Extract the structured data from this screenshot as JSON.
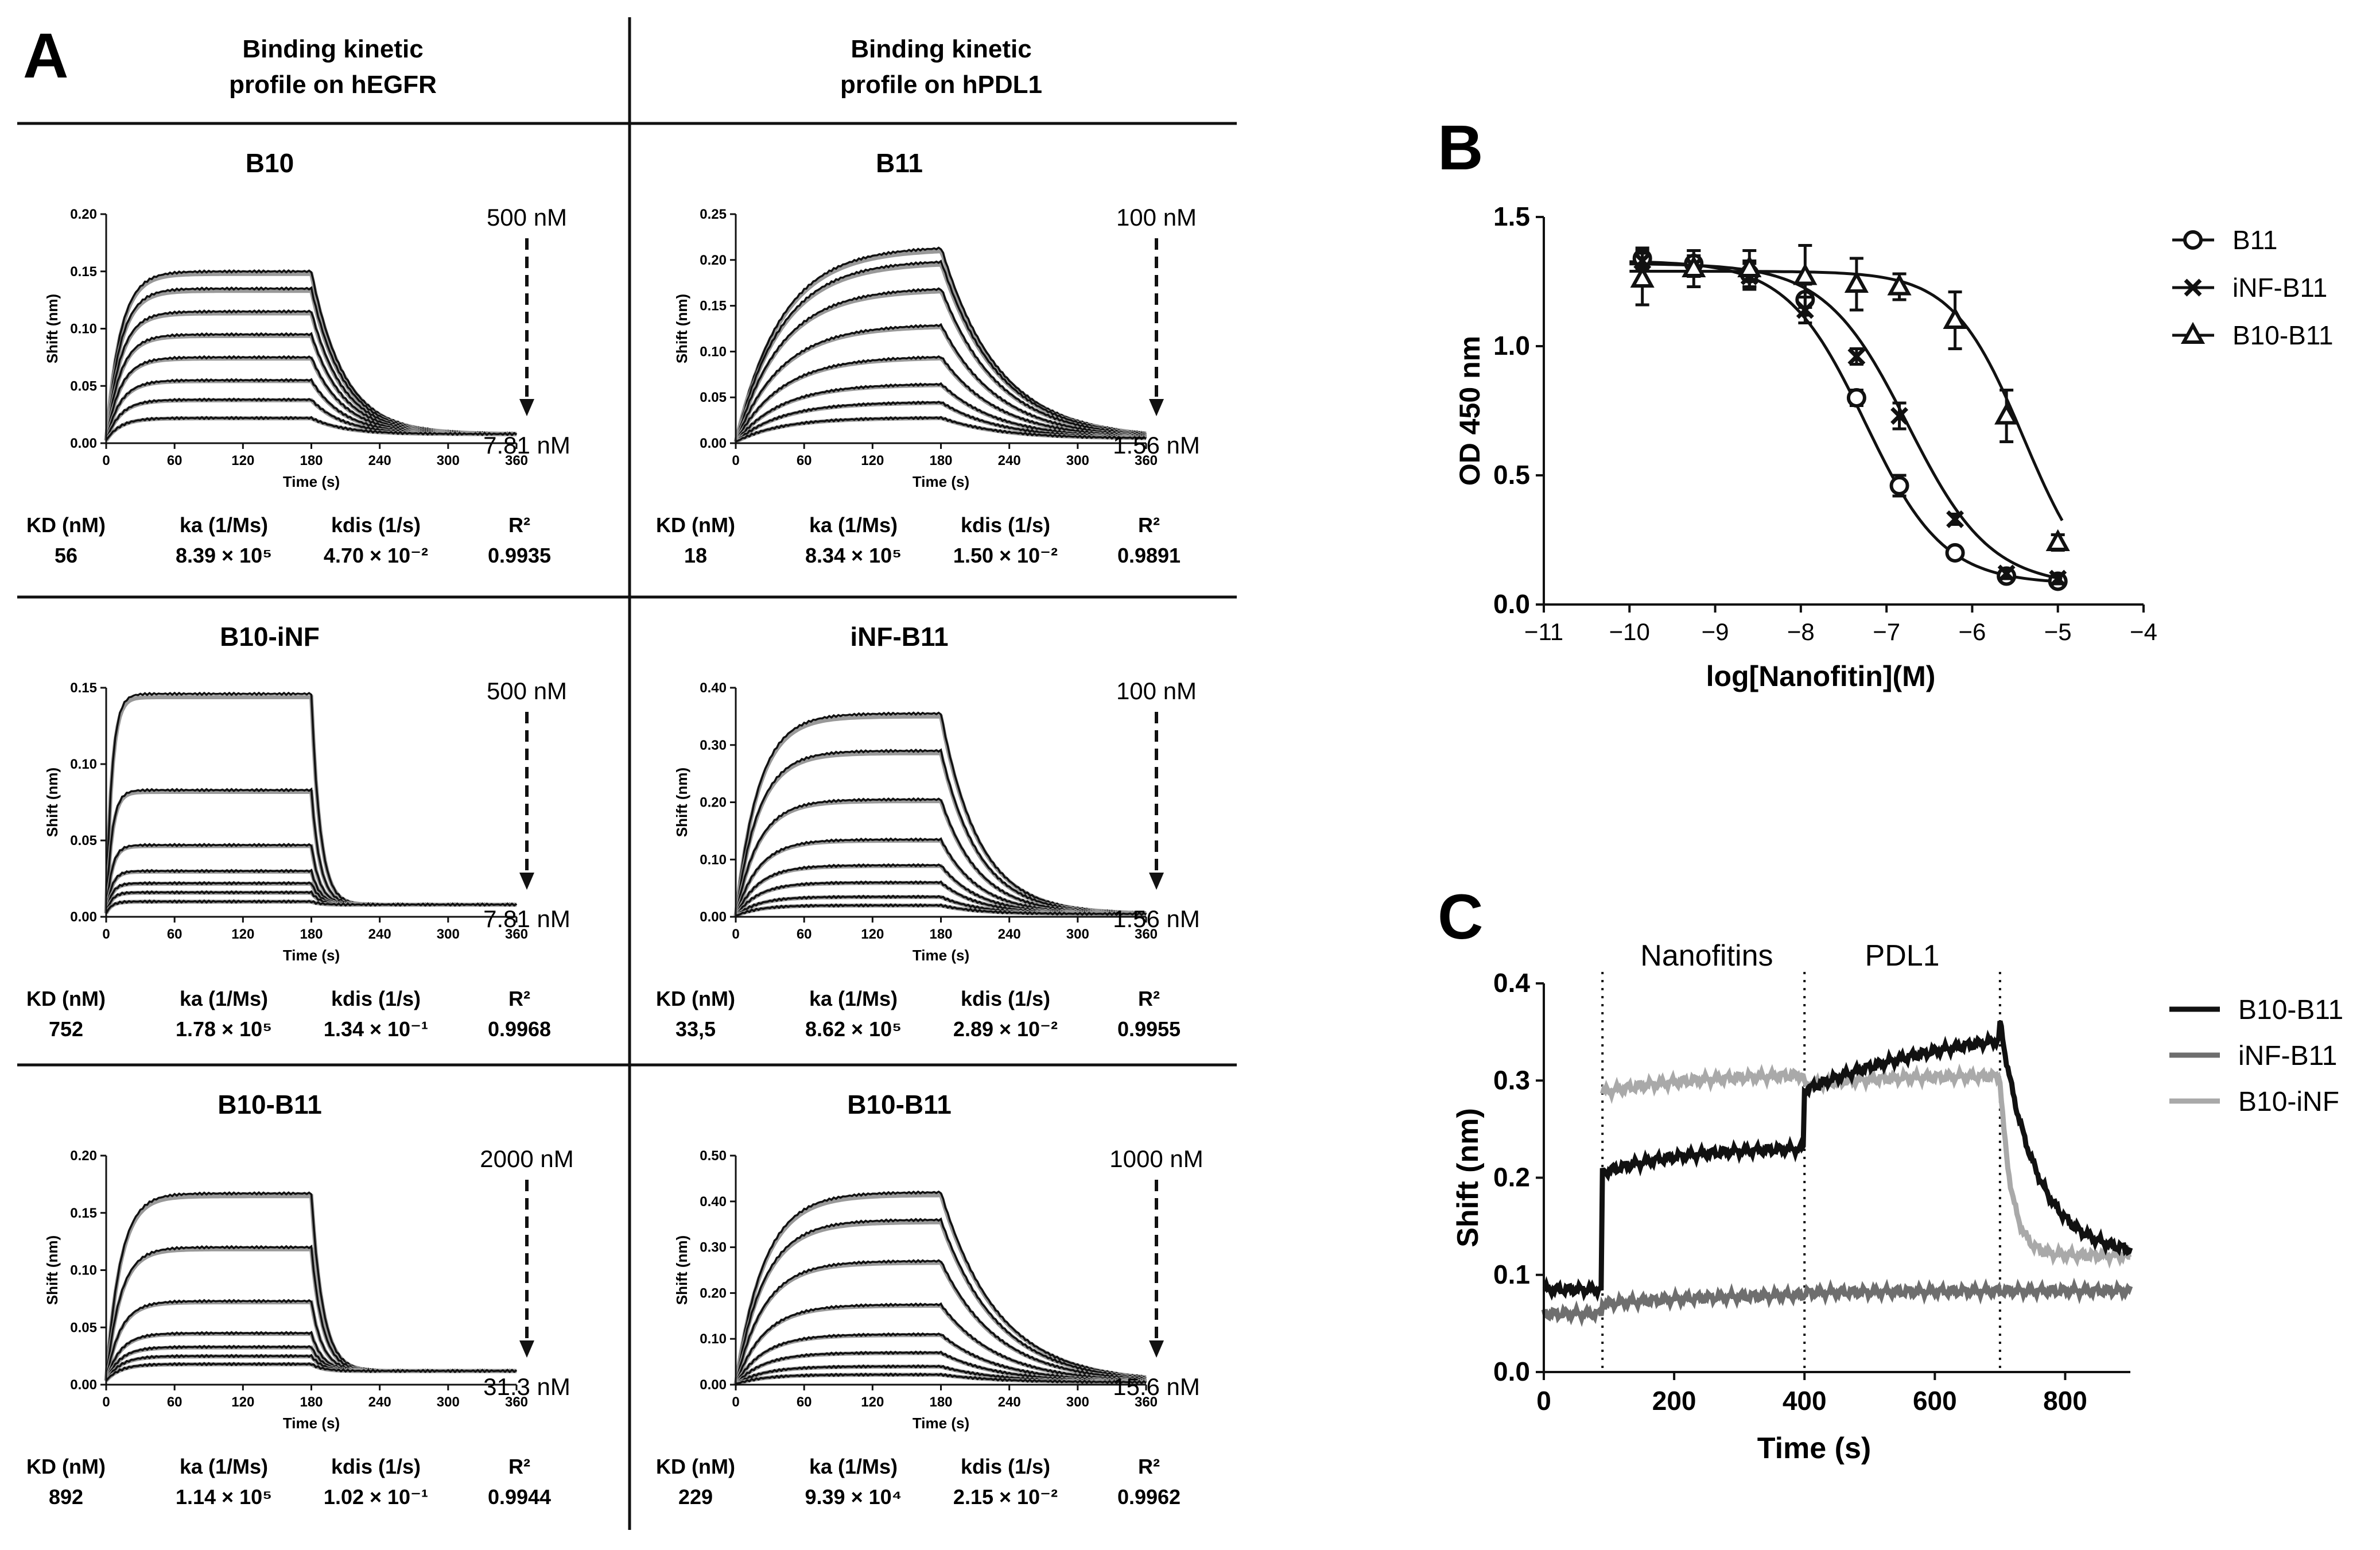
{
  "panel_labels": [
    "A",
    "B",
    "C"
  ],
  "columns": [
    {
      "title_line1": "Binding kinetic",
      "title_line2": "profile on hEGFR"
    },
    {
      "title_line1": "Binding kinetic",
      "title_line2": "profile on hPDL1"
    }
  ],
  "stat_headers": {
    "kd": "KD (nM)",
    "ka": "ka (1/Ms)",
    "kdis": "kdis (1/s)",
    "r2": "R²"
  },
  "colors": {
    "black": "#111111",
    "dark_gray": "#6e6e6e",
    "light_gray": "#a9a9a9",
    "fit_gray": "#999999"
  },
  "chart_data": [
    {
      "type": "line",
      "name": "B10",
      "title": "B10",
      "xlabel": "Time (s)",
      "ylabel": "Shift (nm)",
      "xlim": [
        0,
        360
      ],
      "ylim": [
        0,
        0.2
      ],
      "xticks": [
        0,
        60,
        120,
        180,
        240,
        300,
        360
      ],
      "yticks": [
        0.0,
        0.05,
        0.1,
        0.15,
        0.2
      ],
      "ytick_format": 2,
      "plateaus": [
        0.15,
        0.135,
        0.115,
        0.095,
        0.075,
        0.055,
        0.038,
        0.022
      ],
      "kon": 0.08,
      "koff": 0.035,
      "baseline": 0.008,
      "conc_top": "500 nM",
      "conc_bottom": "7.81 nM",
      "stats": {
        "kd": "56",
        "ka": "8.39 × 10⁵",
        "kdis": "4.70 × 10⁻²",
        "r2": "0.9935"
      }
    },
    {
      "type": "line",
      "name": "B11",
      "title": "B11",
      "xlabel": "Time (s)",
      "ylabel": "Shift (nm)",
      "xlim": [
        0,
        360
      ],
      "ylim": [
        0,
        0.25
      ],
      "xticks": [
        0,
        60,
        120,
        180,
        240,
        300,
        360
      ],
      "yticks": [
        0.0,
        0.05,
        0.1,
        0.15,
        0.2,
        0.25
      ],
      "ytick_format": 2,
      "plateaus": [
        0.215,
        0.2,
        0.17,
        0.13,
        0.095,
        0.065,
        0.045,
        0.028
      ],
      "kon": 0.025,
      "koff": 0.02,
      "baseline": 0.005,
      "conc_top": "100 nM",
      "conc_bottom": "1.56 nM",
      "stats": {
        "kd": "18",
        "ka": "8.34 × 10⁵",
        "kdis": "1.50 × 10⁻²",
        "r2": "0.9891"
      }
    },
    {
      "type": "line",
      "name": "B10-iNF",
      "title": "B10-iNF",
      "xlabel": "Time (s)",
      "ylabel": "Shift (nm)",
      "xlim": [
        0,
        360
      ],
      "ylim": [
        0,
        0.15
      ],
      "xticks": [
        0,
        60,
        120,
        180,
        240,
        300,
        360
      ],
      "yticks": [
        0.0,
        0.05,
        0.1,
        0.15
      ],
      "ytick_format": 2,
      "plateaus": [
        0.146,
        0.083,
        0.047,
        0.03,
        0.022,
        0.016,
        0.01
      ],
      "kon": 0.2,
      "koff": 0.13,
      "baseline": 0.008,
      "conc_top": "500 nM",
      "conc_bottom": "7.81 nM",
      "stats": {
        "kd": "752",
        "ka": "1.78 × 10⁵",
        "kdis": "1.34 × 10⁻¹",
        "r2": "0.9968"
      }
    },
    {
      "type": "line",
      "name": "iNF-B11",
      "title": "iNF-B11",
      "xlabel": "Time (s)",
      "ylabel": "Shift (nm)",
      "xlim": [
        0,
        360
      ],
      "ylim": [
        0,
        0.4
      ],
      "xticks": [
        0,
        60,
        120,
        180,
        240,
        300,
        360
      ],
      "yticks": [
        0.0,
        0.1,
        0.2,
        0.3,
        0.4
      ],
      "ytick_format": 2,
      "plateaus": [
        0.355,
        0.29,
        0.205,
        0.135,
        0.09,
        0.06,
        0.035,
        0.02
      ],
      "kon": 0.05,
      "koff": 0.03,
      "baseline": 0.005,
      "conc_top": "100 nM",
      "conc_bottom": "1.56 nM",
      "stats": {
        "kd": "33,5",
        "ka": "8.62 × 10⁵",
        "kdis": "2.89 × 10⁻²",
        "r2": "0.9955"
      }
    },
    {
      "type": "line",
      "name": "B10-B11 (hEGFR)",
      "title": "B10-B11",
      "xlabel": "Time (s)",
      "ylabel": "Shift (nm)",
      "xlim": [
        0,
        360
      ],
      "ylim": [
        0,
        0.2
      ],
      "xticks": [
        0,
        60,
        120,
        180,
        240,
        300,
        360
      ],
      "yticks": [
        0.0,
        0.05,
        0.1,
        0.15,
        0.2
      ],
      "ytick_format": 2,
      "plateaus": [
        0.167,
        0.12,
        0.073,
        0.045,
        0.033,
        0.025,
        0.018
      ],
      "kon": 0.08,
      "koff": 0.1,
      "baseline": 0.012,
      "conc_top": "2000 nM",
      "conc_bottom": "31.3 nM",
      "stats": {
        "kd": "892",
        "ka": "1.14 × 10⁵",
        "kdis": "1.02 × 10⁻¹",
        "r2": "0.9944"
      }
    },
    {
      "type": "line",
      "name": "B10-B11 (hPDL1)",
      "title": "B10-B11",
      "xlabel": "Time (s)",
      "ylabel": "Shift (nm)",
      "xlim": [
        0,
        360
      ],
      "ylim": [
        0,
        0.5
      ],
      "xticks": [
        0,
        60,
        120,
        180,
        240,
        300,
        360
      ],
      "yticks": [
        0.0,
        0.1,
        0.2,
        0.3,
        0.4,
        0.5
      ],
      "ytick_format": 2,
      "plateaus": [
        0.42,
        0.36,
        0.27,
        0.175,
        0.11,
        0.07,
        0.04,
        0.022
      ],
      "kon": 0.04,
      "koff": 0.02,
      "baseline": 0.005,
      "conc_top": "1000 nM",
      "conc_bottom": "15.6 nM",
      "stats": {
        "kd": "229",
        "ka": "9.39 × 10⁴",
        "kdis": "2.15 × 10⁻²",
        "r2": "0.9962"
      }
    },
    {
      "type": "scatter",
      "name": "B",
      "xlabel": "log[Nanofitin](M)",
      "ylabel": "OD 450 nm",
      "xlim": [
        -11,
        -4
      ],
      "ylim": [
        0,
        1.5
      ],
      "xticks": [
        -11,
        -10,
        -9,
        -8,
        -7,
        -6,
        -5,
        -4
      ],
      "yticks": [
        0.0,
        0.5,
        1.0,
        1.5
      ],
      "ytick_format": 1,
      "x": [
        -9.85,
        -9.25,
        -8.6,
        -7.95,
        -7.35,
        -6.85,
        -6.2,
        -5.6,
        -5.0
      ],
      "series": [
        {
          "name": "B11",
          "marker": "circle",
          "values": [
            1.34,
            1.32,
            1.28,
            1.18,
            0.8,
            0.46,
            0.2,
            0.11,
            0.09
          ],
          "errors": [
            0.04,
            0.05,
            0.05,
            0.06,
            0.03,
            0.04,
            0.02,
            0.02,
            0.02
          ],
          "curve": {
            "top": 1.33,
            "bottom": 0.08,
            "logec50": -7.25,
            "hill": 0.95
          }
        },
        {
          "name": "iNF-B11",
          "marker": "cross",
          "values": [
            1.33,
            1.31,
            1.27,
            1.14,
            0.96,
            0.73,
            0.33,
            0.12,
            0.1
          ],
          "errors": [
            0.04,
            0.04,
            0.05,
            0.05,
            0.03,
            0.05,
            0.02,
            0.02,
            0.02
          ],
          "curve": {
            "top": 1.32,
            "bottom": 0.07,
            "logec50": -6.75,
            "hill": 0.9
          }
        },
        {
          "name": "B10-B11",
          "marker": "triangle",
          "values": [
            1.26,
            1.3,
            1.3,
            1.27,
            1.24,
            1.23,
            1.1,
            0.73,
            0.24
          ],
          "errors": [
            0.1,
            0.07,
            0.07,
            0.12,
            0.1,
            0.05,
            0.11,
            0.1,
            0.03
          ],
          "curve": {
            "top": 1.29,
            "bottom": 0.0,
            "logec50": -5.4,
            "hill": 1.05
          }
        }
      ]
    },
    {
      "type": "line",
      "name": "C",
      "xlabel": "Time (s)",
      "ylabel": "Shift (nm)",
      "xlim": [
        0,
        900
      ],
      "ylim": [
        0,
        0.4
      ],
      "xticks": [
        0,
        200,
        400,
        600,
        800
      ],
      "yticks": [
        0.0,
        0.1,
        0.2,
        0.3,
        0.4
      ],
      "ytick_format": 1,
      "step_annotations": [
        {
          "label": "Nanofitins",
          "x": 250
        },
        {
          "label": "PDL1",
          "x": 550
        }
      ],
      "vlines": [
        90,
        400,
        700
      ],
      "series": [
        {
          "name": "B10-B11",
          "color": "#111111"
        },
        {
          "name": "iNF-B11",
          "color": "#6e6e6e"
        },
        {
          "name": "B10-iNF",
          "color": "#a9a9a9"
        }
      ]
    }
  ]
}
